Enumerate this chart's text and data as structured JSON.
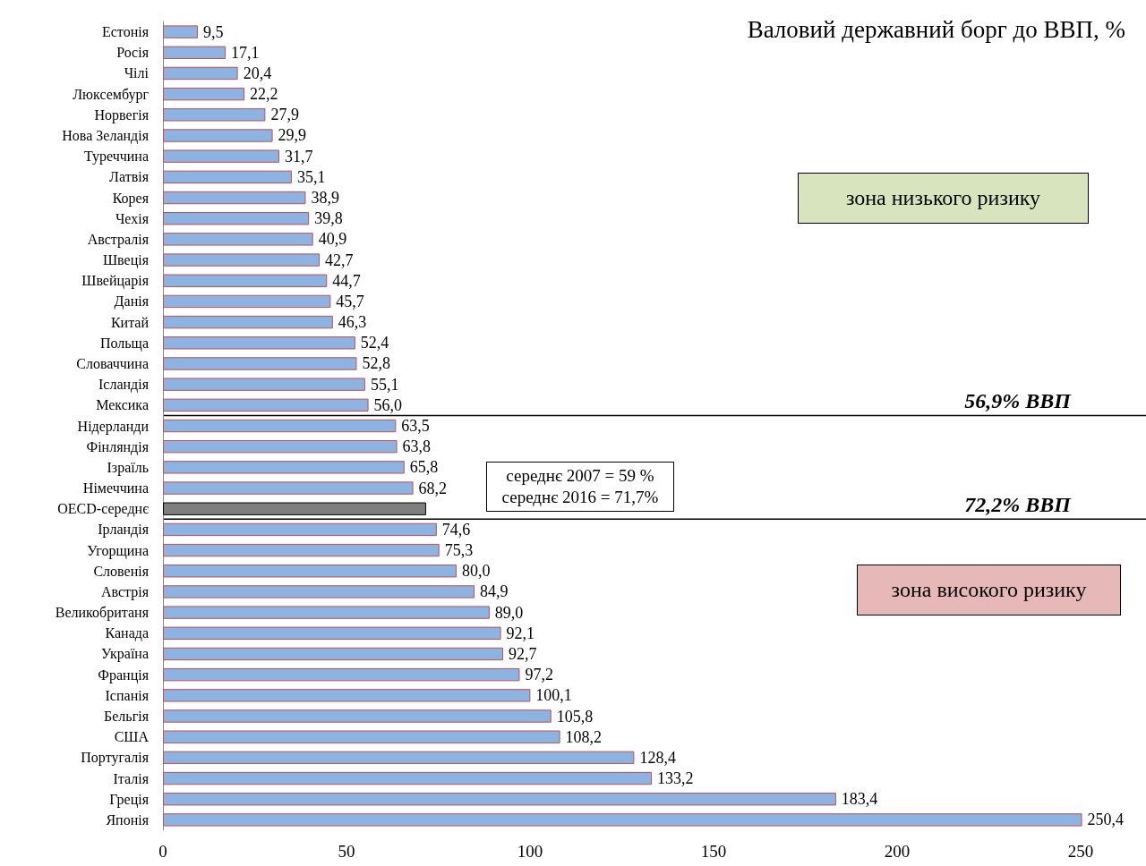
{
  "chart_data": {
    "type": "bar",
    "orientation": "horizontal",
    "title": "Валовий державний борг до ВВП, %",
    "categories": [
      "Естонія",
      "Росія",
      "Чілі",
      "Люксембург",
      "Норвегія",
      "Нова Зеландія",
      "Туреччина",
      "Латвія",
      "Корея",
      "Чехія",
      "Австралія",
      "Швеція",
      "Швейцарія",
      "Данія",
      "Китай",
      "Польща",
      "Словаччина",
      "Ісландія",
      "Мексика",
      "Нідерланди",
      "Фінляндія",
      "Ізраїль",
      "Німеччина",
      "OECD-середнє",
      "Ірландія",
      "Угорщина",
      "Словенія",
      "Австрія",
      "Великобританя",
      "Канада",
      "Україна",
      "Франція",
      "Іспанія",
      "Бельгія",
      "США",
      "Португалія",
      "Італія",
      "Греція",
      "Японія"
    ],
    "values": [
      9.5,
      17.1,
      20.4,
      22.2,
      27.9,
      29.9,
      31.7,
      35.1,
      38.9,
      39.8,
      40.9,
      42.7,
      44.7,
      45.7,
      46.3,
      52.4,
      52.8,
      55.1,
      56.0,
      63.5,
      63.8,
      65.8,
      68.2,
      71.7,
      74.6,
      75.3,
      80.0,
      84.9,
      89.0,
      92.1,
      92.7,
      97.2,
      100.1,
      105.8,
      108.2,
      128.4,
      133.2,
      183.4,
      250.4
    ],
    "value_labels": [
      "9,5",
      "17,1",
      "20,4",
      "22,2",
      "27,9",
      "29,9",
      "31,7",
      "35,1",
      "38,9",
      "39,8",
      "40,9",
      "42,7",
      "44,7",
      "45,7",
      "46,3",
      "52,4",
      "52,8",
      "55,1",
      "56,0",
      "63,5",
      "63,8",
      "65,8",
      "68,2",
      null,
      "74,6",
      "75,3",
      "80,0",
      "84,9",
      "89,0",
      "92,1",
      "92,7",
      "97,2",
      "100,1",
      "105,8",
      "108,2",
      "128,4",
      "133,2",
      "183,4",
      "250,4"
    ],
    "colors": [
      "#8db3e2",
      "#8db3e2",
      "#8db3e2",
      "#8db3e2",
      "#8db3e2",
      "#8db3e2",
      "#8db3e2",
      "#8db3e2",
      "#8db3e2",
      "#8db3e2",
      "#8db3e2",
      "#8db3e2",
      "#8db3e2",
      "#8db3e2",
      "#8db3e2",
      "#8db3e2",
      "#8db3e2",
      "#8db3e2",
      "#8db3e2",
      "#8db3e2",
      "#8db3e2",
      "#8db3e2",
      "#8db3e2",
      "#7f7f7f",
      "#8db3e2",
      "#8db3e2",
      "#8db3e2",
      "#8db3e2",
      "#8db3e2",
      "#8db3e2",
      "#8db3e2",
      "#8db3e2",
      "#8db3e2",
      "#8db3e2",
      "#8db3e2",
      "#8db3e2",
      "#8db3e2",
      "#8db3e2",
      "#8db3e2"
    ],
    "xlim": [
      0,
      251
    ],
    "xticks": [
      0,
      50,
      100,
      150,
      200,
      250
    ],
    "annotations": [
      "зона низького ризику",
      "середнє 2007 = 59 %\nсереднє 2016 = 71,7%",
      "зона високого ризику",
      "56,9% ВВП",
      "72,2% ВВП"
    ],
    "grid": false
  }
}
